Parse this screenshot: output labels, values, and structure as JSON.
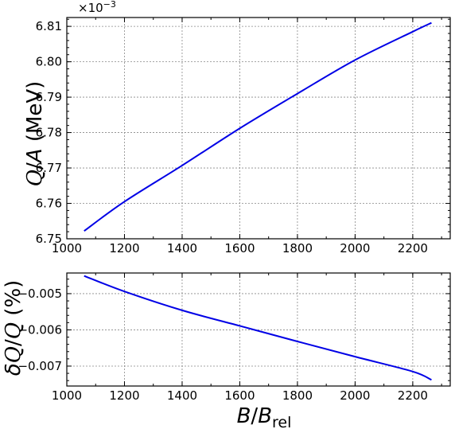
{
  "chart_data": [
    {
      "type": "line",
      "title": "",
      "xlabel": "",
      "ylabel_main": "Q",
      "ylabel_sep": "/",
      "ylabel_italic": "A",
      "ylabel_unit": " (MeV)",
      "offset_base": "×10",
      "offset_exp": "−3",
      "xlim": [
        1000,
        2330
      ],
      "ylim": [
        6.75,
        6.8125
      ],
      "xticks": [
        1000,
        1200,
        1400,
        1600,
        1800,
        2000,
        2200
      ],
      "xtick_labels": [
        "1000",
        "1200",
        "1400",
        "1600",
        "1800",
        "2000",
        "2200"
      ],
      "yticks": [
        6.75,
        6.76,
        6.77,
        6.78,
        6.79,
        6.8,
        6.81
      ],
      "ytick_labels": [
        "6.75",
        "6.76",
        "6.77",
        "6.78",
        "6.79",
        "6.80",
        "6.81"
      ],
      "grid": true,
      "series": [
        {
          "color": "#0000e6",
          "x": [
            1060,
            1200,
            1400,
            1600,
            1800,
            2000,
            2200,
            2265
          ],
          "y": [
            6.7522,
            6.7605,
            6.7707,
            6.7812,
            6.791,
            6.8005,
            6.8085,
            6.811
          ]
        }
      ]
    },
    {
      "type": "line",
      "title": "",
      "xlabel_italic_b": "B",
      "xlabel_sep": "/",
      "xlabel_italic_b2": "B",
      "xlabel_sub": "rel",
      "ylabel_delta": "δ",
      "ylabel_q1": "Q",
      "ylabel_sep": "/",
      "ylabel_q2": "Q",
      "ylabel_unit": " (%)",
      "xlim": [
        1000,
        2330
      ],
      "ylim": [
        -0.00755,
        -0.00443
      ],
      "xticks": [
        1000,
        1200,
        1400,
        1600,
        1800,
        2000,
        2200
      ],
      "xtick_labels": [
        "1000",
        "1200",
        "1400",
        "1600",
        "1800",
        "2000",
        "2200"
      ],
      "yticks": [
        -0.005,
        -0.006,
        -0.007
      ],
      "ytick_labels": [
        "−0.005",
        "−0.006",
        "−0.007"
      ],
      "grid": true,
      "series": [
        {
          "color": "#0000e6",
          "x": [
            1060,
            1200,
            1400,
            1600,
            1800,
            2000,
            2200,
            2265
          ],
          "y": [
            -0.00451,
            -0.00494,
            -0.00546,
            -0.00589,
            -0.00632,
            -0.00674,
            -0.00715,
            -0.00738
          ]
        }
      ]
    }
  ]
}
